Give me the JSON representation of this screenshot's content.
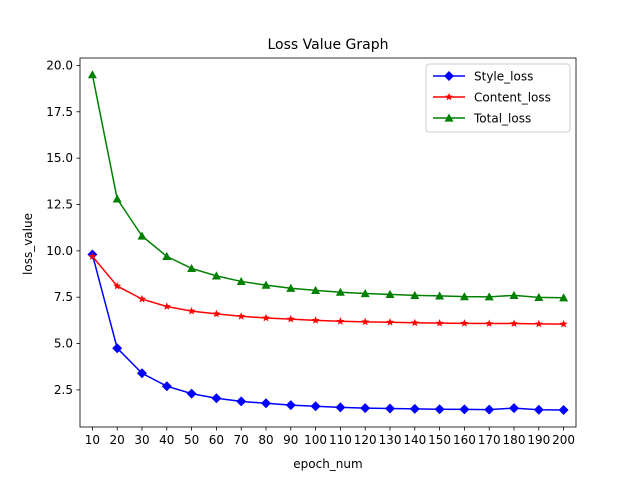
{
  "chart_data": {
    "type": "line",
    "title": "Loss Value Graph",
    "xlabel": "epoch_num",
    "ylabel": "loss_value",
    "x": [
      10,
      20,
      30,
      40,
      50,
      60,
      70,
      80,
      90,
      100,
      110,
      120,
      130,
      140,
      150,
      160,
      170,
      180,
      190,
      200
    ],
    "xticks": [
      "10",
      "20",
      "30",
      "40",
      "50",
      "60",
      "70",
      "80",
      "90",
      "100",
      "110",
      "120",
      "130",
      "140",
      "150",
      "160",
      "170",
      "180",
      "190",
      "200"
    ],
    "yticks": [
      "2.5",
      "5.0",
      "7.5",
      "10.0",
      "12.5",
      "15.0",
      "17.5",
      "20.0"
    ],
    "ylim": [
      0.5,
      20.4
    ],
    "grid": false,
    "legend_position": "top-right",
    "series": [
      {
        "name": "Style_loss",
        "color": "#0000ff",
        "marker": "diamond",
        "values": [
          9.8,
          4.75,
          3.4,
          2.7,
          2.3,
          2.05,
          1.88,
          1.78,
          1.68,
          1.62,
          1.56,
          1.52,
          1.5,
          1.48,
          1.46,
          1.45,
          1.44,
          1.52,
          1.43,
          1.42
        ]
      },
      {
        "name": "Content_loss",
        "color": "#ff0000",
        "marker": "star",
        "values": [
          9.7,
          8.1,
          7.4,
          7.0,
          6.75,
          6.6,
          6.47,
          6.38,
          6.32,
          6.25,
          6.2,
          6.17,
          6.15,
          6.12,
          6.1,
          6.09,
          6.08,
          6.08,
          6.06,
          6.05
        ]
      },
      {
        "name": "Total_loss",
        "color": "#008000",
        "marker": "triangle",
        "values": [
          19.5,
          12.8,
          10.8,
          9.7,
          9.05,
          8.65,
          8.35,
          8.15,
          7.98,
          7.87,
          7.77,
          7.7,
          7.65,
          7.6,
          7.57,
          7.53,
          7.52,
          7.6,
          7.49,
          7.47
        ]
      }
    ]
  }
}
